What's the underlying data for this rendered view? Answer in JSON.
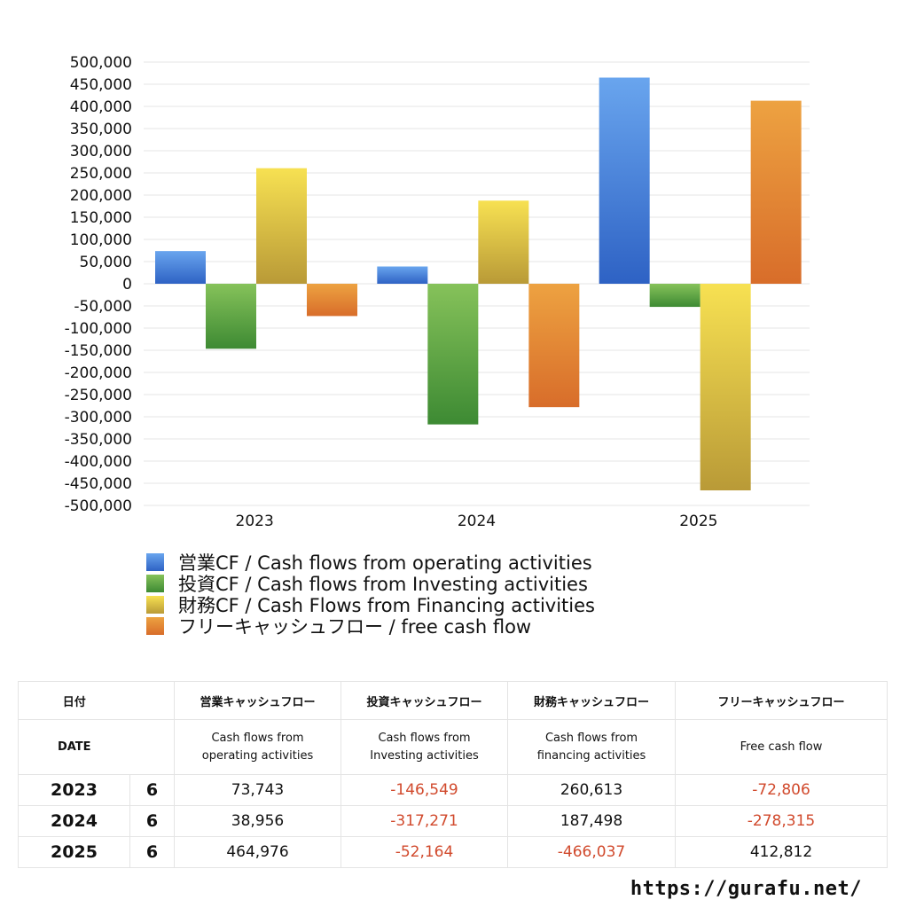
{
  "chart_data": {
    "type": "bar",
    "categories": [
      "2023",
      "2024",
      "2025"
    ],
    "series": [
      {
        "name": "営業CF / Cash flows from operating activities",
        "values": [
          73743,
          38956,
          464976
        ],
        "colors": [
          "#69a5ee",
          "#2e62c4"
        ]
      },
      {
        "name": "投資CF / Cash flows from Investing activities",
        "values": [
          -146549,
          -317271,
          -52164
        ],
        "colors": [
          "#86c25a",
          "#3d8a33"
        ]
      },
      {
        "name": "財務CF / Cash Flows from Financing activities",
        "values": [
          260613,
          187498,
          -466037
        ],
        "colors": [
          "#f7e152",
          "#b99a37"
        ]
      },
      {
        "name": "フリーキャッシュフロー / free cash flow",
        "values": [
          -72806,
          -278315,
          412812
        ],
        "colors": [
          "#eda241",
          "#d86d2a"
        ]
      }
    ],
    "ylim": [
      -500000,
      500000
    ],
    "yticks": [
      "500,000",
      "450,000",
      "400,000",
      "350,000",
      "300,000",
      "250,000",
      "200,000",
      "150,000",
      "100,000",
      "50,000",
      "0",
      "-50,000",
      "-100,000",
      "-150,000",
      "-200,000",
      "-250,000",
      "-300,000",
      "-350,000",
      "-400,000",
      "-450,000",
      "-500,000"
    ],
    "grid": true,
    "legend_position": "bottom"
  },
  "table": {
    "header1": [
      "日付",
      "",
      "営業キャッシュフロー",
      "投資キャッシュフロー",
      "財務キャッシュフロー",
      "フリーキャッシュフロー"
    ],
    "header2": {
      "date": "DATE",
      "op_line1": "Cash flows from",
      "op_line2": "operating activities",
      "inv_line1": "Cash flows from",
      "inv_line2": "Investing activities",
      "fin_line1": "Cash flows from",
      "fin_line2": "financing activities",
      "fcf": "Free cash flow"
    },
    "rows": [
      {
        "year": "2023",
        "month": "6",
        "op": "73,743",
        "inv": "-146,549",
        "fin": "260,613",
        "fcf": "-72,806"
      },
      {
        "year": "2024",
        "month": "6",
        "op": "38,956",
        "inv": "-317,271",
        "fin": "187,498",
        "fcf": "-278,315"
      },
      {
        "year": "2025",
        "month": "6",
        "op": "464,976",
        "inv": "-52,164",
        "fin": "-466,037",
        "fcf": "412,812"
      }
    ],
    "negative_color": "#d14a2d"
  },
  "footer": {
    "url": "https://gurafu.net/"
  }
}
